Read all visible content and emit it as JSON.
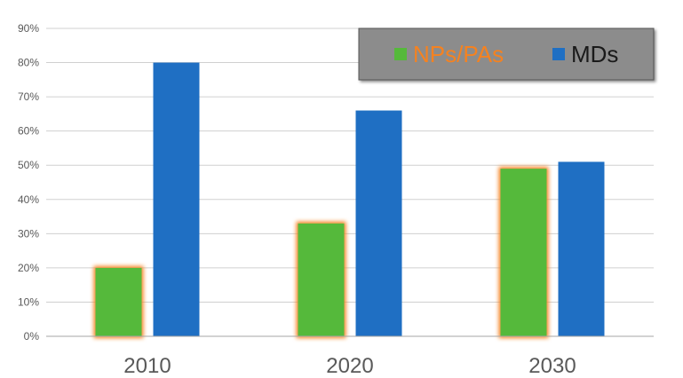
{
  "chart_data": {
    "type": "bar",
    "categories": [
      "2010",
      "2020",
      "2030"
    ],
    "series": [
      {
        "name": "NPs/PAs",
        "values": [
          20,
          33,
          49
        ],
        "color": "#55b93a",
        "glow": "#f58220",
        "label_color": "#f58220"
      },
      {
        "name": "MDs",
        "values": [
          80,
          66,
          51
        ],
        "color": "#1f6fc3",
        "label_color": "#1a1a1a"
      }
    ],
    "ylim": [
      0,
      90
    ],
    "yticks": [
      "0%",
      "10%",
      "20%",
      "30%",
      "40%",
      "50%",
      "60%",
      "70%",
      "80%",
      "90%"
    ],
    "grid": true,
    "legend_position": "top-right",
    "legend_bg": "#8c8c8c",
    "title": "",
    "xlabel": "",
    "ylabel": ""
  }
}
